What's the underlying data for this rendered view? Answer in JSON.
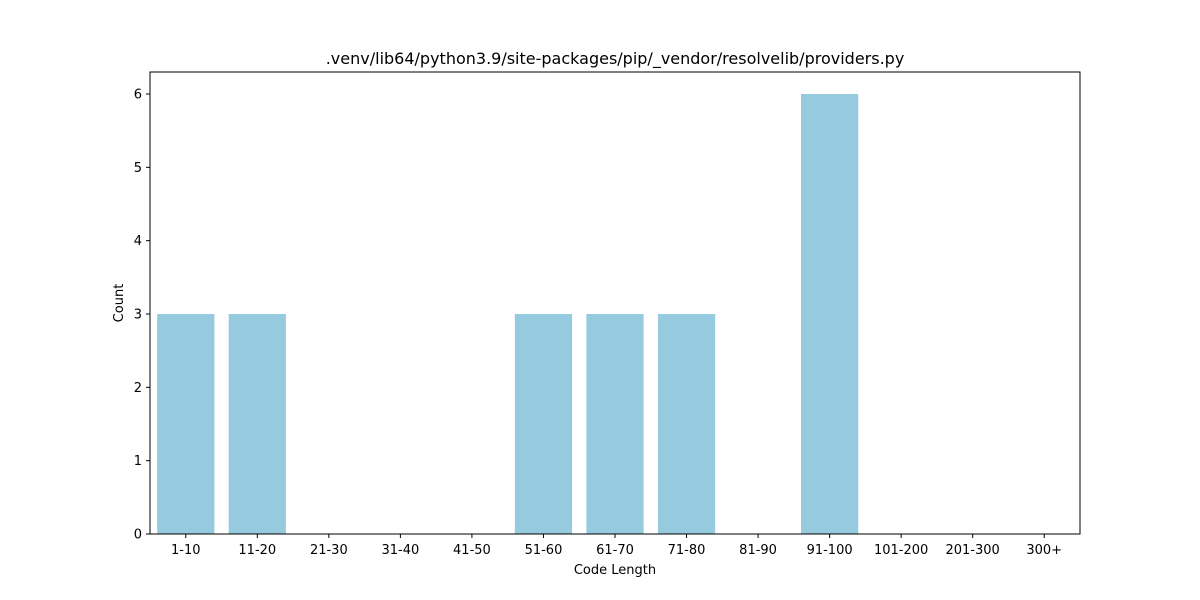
{
  "chart_data": {
    "type": "bar",
    "title": ".venv/lib64/python3.9/site-packages/pip/_vendor/resolvelib/providers.py",
    "xlabel": "Code Length",
    "ylabel": "Count",
    "categories": [
      "1-10",
      "11-20",
      "21-30",
      "31-40",
      "41-50",
      "51-60",
      "61-70",
      "71-80",
      "81-90",
      "91-100",
      "101-200",
      "201-300",
      "300+"
    ],
    "values": [
      3,
      3,
      0,
      0,
      0,
      3,
      3,
      3,
      0,
      6,
      0,
      0,
      0
    ],
    "ylim": [
      0,
      6.3
    ],
    "yticks": [
      0,
      1,
      2,
      3,
      4,
      5,
      6
    ],
    "bar_color": "#96cadf",
    "grid": false,
    "legend": "none"
  }
}
